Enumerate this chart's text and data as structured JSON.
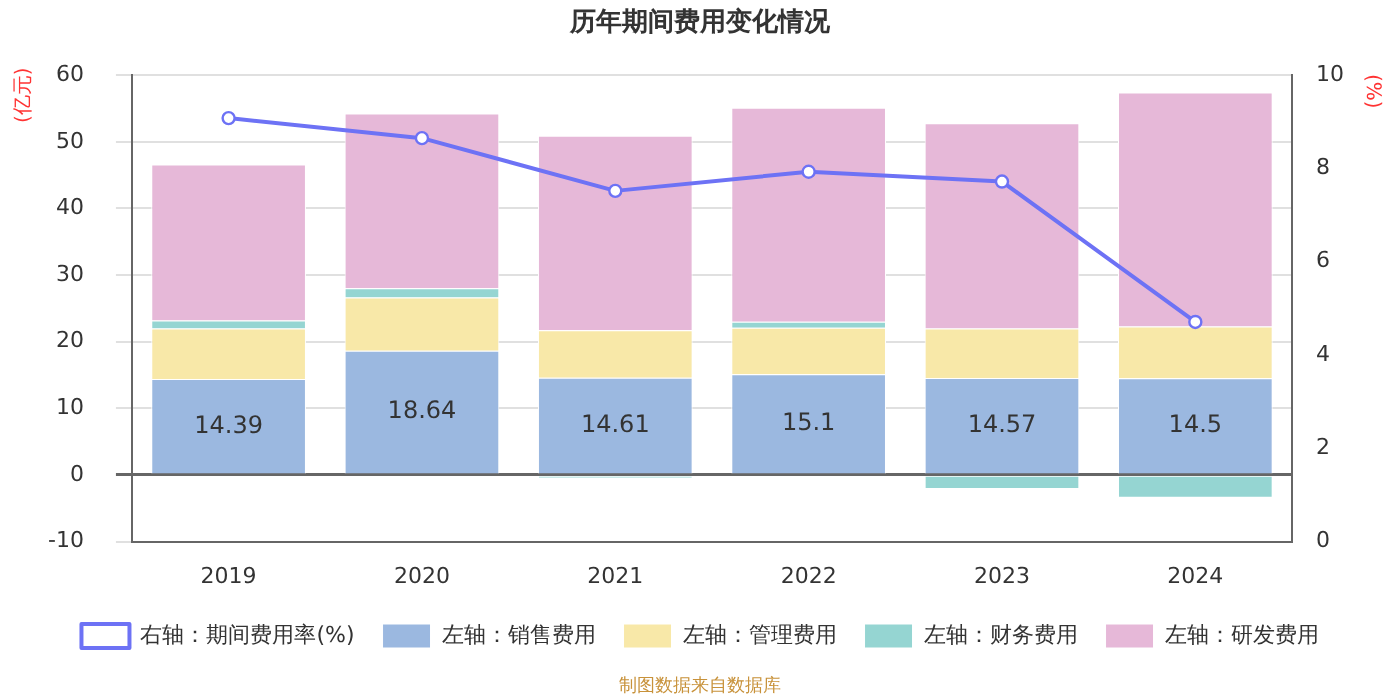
{
  "chart_data": {
    "type": "bar",
    "title": "历年期间费用变化情况",
    "ylabel": "(亿元)",
    "y2label": "(%)",
    "categories": [
      "2019",
      "2020",
      "2021",
      "2022",
      "2023",
      "2024"
    ],
    "stacked": true,
    "series": [
      {
        "name": "左轴：销售费用",
        "color": "#9bb8e0",
        "values": [
          14.39,
          18.64,
          14.61,
          15.1,
          14.57,
          14.5
        ],
        "value_labels": [
          "14.39",
          "18.64",
          "14.61",
          "15.1",
          "14.57",
          "14.5"
        ]
      },
      {
        "name": "左轴：管理费用",
        "color": "#f8e8a8",
        "values": [
          7.6,
          8.0,
          7.1,
          7.0,
          7.4,
          7.8
        ]
      },
      {
        "name": "左轴：财务费用",
        "color": "#95d5d2",
        "values": [
          1.2,
          1.4,
          -0.5,
          0.9,
          -2.1,
          -3.4
        ]
      },
      {
        "name": "左轴：研发费用",
        "color": "#e6b8d8",
        "values": [
          23.4,
          26.2,
          29.2,
          32.1,
          30.8,
          35.1
        ]
      },
      {
        "name": "右轴：期间费用率(%)",
        "type": "line",
        "axis": "y2",
        "color": "#6d72f5",
        "marker": "circle",
        "values": [
          9.08,
          8.65,
          7.52,
          7.93,
          7.72,
          4.71
        ]
      }
    ],
    "ylim": [
      -10,
      60
    ],
    "yticks": [
      -10,
      0,
      10,
      20,
      30,
      40,
      50,
      60
    ],
    "y2lim": [
      0,
      10
    ],
    "y2ticks": [
      0,
      2,
      4,
      6,
      8,
      10
    ],
    "grid": "y",
    "legend": "bottom",
    "annotations": [
      "制图数据来自数据库"
    ]
  }
}
